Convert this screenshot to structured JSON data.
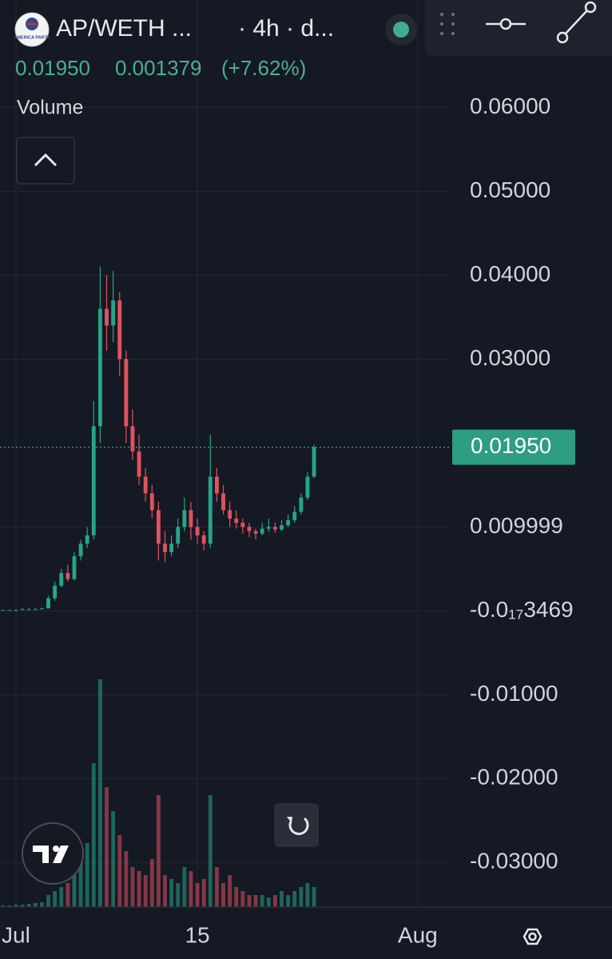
{
  "chart_data": {
    "type": "candlestick",
    "logo_text": "AMERICA PARTY",
    "title": "AP/WETH ...",
    "subtitle": "· 4h · d...",
    "last_close": "0.01950",
    "change": "0.001379",
    "change_pct": "(+7.62%)",
    "volume_label": "Volume",
    "up_color": "#26a58a",
    "down_color": "#e0525e",
    "grid": true,
    "x": [
      0,
      0.5,
      1,
      1.5,
      2,
      2.5,
      3,
      3.5,
      4,
      4.5,
      5,
      5.5,
      6,
      6.5,
      7,
      7.5,
      8,
      8.5,
      9,
      9.5,
      10,
      10.5,
      11,
      11.5,
      12,
      12.5,
      13,
      13.5,
      14,
      14.5,
      15,
      15.5,
      16,
      16.5,
      17,
      17.5,
      18,
      18.5,
      19,
      19.5,
      20,
      20.5,
      21,
      21.5,
      22,
      22.5,
      23,
      23.5,
      24
    ],
    "open": [
      0.0001,
      0.0001,
      0.0001,
      0.0001,
      0.0002,
      0.0002,
      0.0002,
      0.0003,
      0.0015,
      0.003,
      0.0045,
      0.0038,
      0.0065,
      0.008,
      0.009,
      0.022,
      0.036,
      0.034,
      0.037,
      0.03,
      0.022,
      0.019,
      0.016,
      0.014,
      0.012,
      0.008,
      0.007,
      0.008,
      0.01,
      0.012,
      0.01,
      0.009,
      0.008,
      0.016,
      0.014,
      0.012,
      0.011,
      0.0105,
      0.01,
      0.0095,
      0.0092,
      0.0098,
      0.01,
      0.0097,
      0.0102,
      0.0108,
      0.0118,
      0.0135,
      0.016
    ],
    "high": [
      0.0001,
      0.0001,
      0.0002,
      0.0003,
      0.0003,
      0.0003,
      0.0004,
      0.0018,
      0.0035,
      0.005,
      0.0055,
      0.007,
      0.0085,
      0.01,
      0.025,
      0.041,
      0.04,
      0.0405,
      0.038,
      0.031,
      0.024,
      0.021,
      0.017,
      0.015,
      0.013,
      0.0095,
      0.009,
      0.011,
      0.0135,
      0.013,
      0.011,
      0.0095,
      0.021,
      0.017,
      0.015,
      0.013,
      0.012,
      0.011,
      0.0105,
      0.0098,
      0.0105,
      0.011,
      0.0105,
      0.0108,
      0.0115,
      0.0125,
      0.014,
      0.0165,
      0.0198
    ],
    "low": [
      0.0001,
      0.0001,
      0.0001,
      0.0001,
      0.0001,
      0.0002,
      0.0002,
      0.0003,
      0.0012,
      0.0028,
      0.0035,
      0.0036,
      0.006,
      0.0075,
      0.0085,
      0.02,
      0.031,
      0.032,
      0.028,
      0.02,
      0.018,
      0.015,
      0.013,
      0.011,
      0.006,
      0.0058,
      0.0065,
      0.0075,
      0.0095,
      0.0085,
      0.008,
      0.0072,
      0.0075,
      0.013,
      0.0115,
      0.01,
      0.0098,
      0.0092,
      0.0088,
      0.0085,
      0.009,
      0.0094,
      0.0093,
      0.0095,
      0.01,
      0.0105,
      0.0115,
      0.0132,
      0.0158
    ],
    "close": [
      0.0001,
      0.0001,
      0.0001,
      0.0002,
      0.0002,
      0.0002,
      0.0003,
      0.0015,
      0.003,
      0.0045,
      0.0038,
      0.0065,
      0.008,
      0.009,
      0.022,
      0.036,
      0.034,
      0.037,
      0.03,
      0.022,
      0.019,
      0.016,
      0.014,
      0.012,
      0.008,
      0.007,
      0.008,
      0.01,
      0.012,
      0.01,
      0.009,
      0.008,
      0.016,
      0.014,
      0.012,
      0.011,
      0.0105,
      0.01,
      0.0095,
      0.0092,
      0.0098,
      0.01,
      0.0097,
      0.0102,
      0.0108,
      0.0118,
      0.0135,
      0.016,
      0.0195
    ],
    "volume": [
      2,
      2,
      3,
      3,
      4,
      5,
      6,
      15,
      20,
      25,
      30,
      40,
      60,
      80,
      180,
      285,
      150,
      120,
      90,
      70,
      50,
      45,
      40,
      60,
      140,
      40,
      35,
      30,
      50,
      45,
      30,
      35,
      140,
      50,
      30,
      40,
      25,
      20,
      15,
      15,
      15,
      12,
      15,
      20,
      15,
      20,
      25,
      30,
      25
    ],
    "xlim": [
      -0.23,
      34.6
    ],
    "xticks": [
      {
        "value": 1,
        "label": "Jul"
      },
      15,
      {
        "value": 32,
        "label": "Aug"
      }
    ],
    "ylim": [
      -0.0353,
      0.0728
    ],
    "yticks": [
      {
        "value": 0.06,
        "label": "0.06000"
      },
      {
        "value": 0.05,
        "label": "0.05000"
      },
      {
        "value": 0.04,
        "label": "0.04000"
      },
      {
        "value": 0.03,
        "label": "0.03000"
      },
      0.009999,
      {
        "value": -3.469e-18,
        "label": "-0.0₁₇3469"
      },
      {
        "value": -0.01,
        "label": "-0.01000"
      },
      {
        "value": -0.02,
        "label": "-0.02000"
      },
      {
        "value": -0.03,
        "label": "-0.03000"
      }
    ],
    "last_price": {
      "value": 0.0195,
      "label": "0.01950"
    }
  }
}
